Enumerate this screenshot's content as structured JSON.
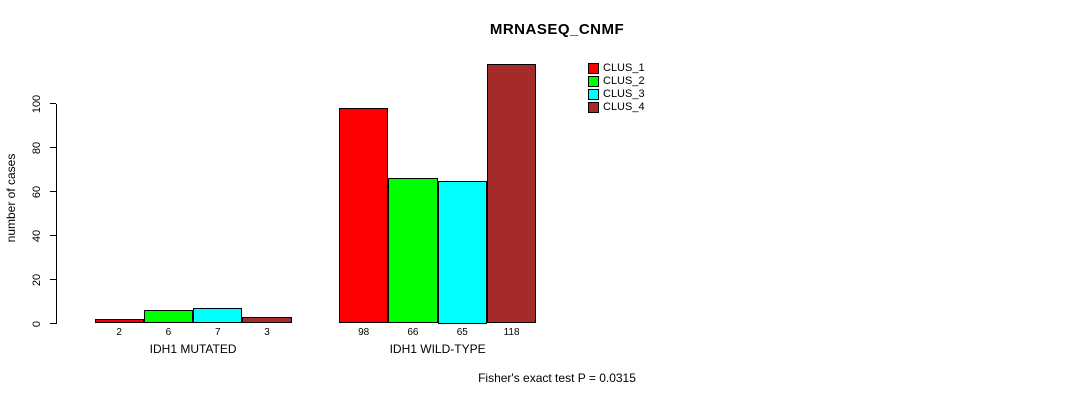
{
  "chart_data": {
    "type": "bar",
    "title": "MRNASEQ_CNMF",
    "ylabel": "number of cases",
    "xlabel": "",
    "footer": "Fisher's exact test P = 0.0315",
    "categories": [
      "IDH1 MUTATED",
      "IDH1 WILD-TYPE"
    ],
    "series": [
      {
        "name": "CLUS_1",
        "color": "#FF0000",
        "values": [
          2,
          98
        ]
      },
      {
        "name": "CLUS_2",
        "color": "#00FF00",
        "values": [
          6,
          66
        ]
      },
      {
        "name": "CLUS_3",
        "color": "#00FFFF",
        "values": [
          7,
          65
        ]
      },
      {
        "name": "CLUS_4",
        "color": "#A52A2A",
        "values": [
          3,
          118
        ]
      }
    ],
    "yticks": [
      0,
      20,
      40,
      60,
      80,
      100
    ],
    "ylim": [
      0,
      118
    ],
    "bar_value_labels_shown": true,
    "grid": false,
    "legend_position": "top-right",
    "bar_border_color": "#000000",
    "text_color": "#000000",
    "background_color": "#FFFFFF"
  }
}
